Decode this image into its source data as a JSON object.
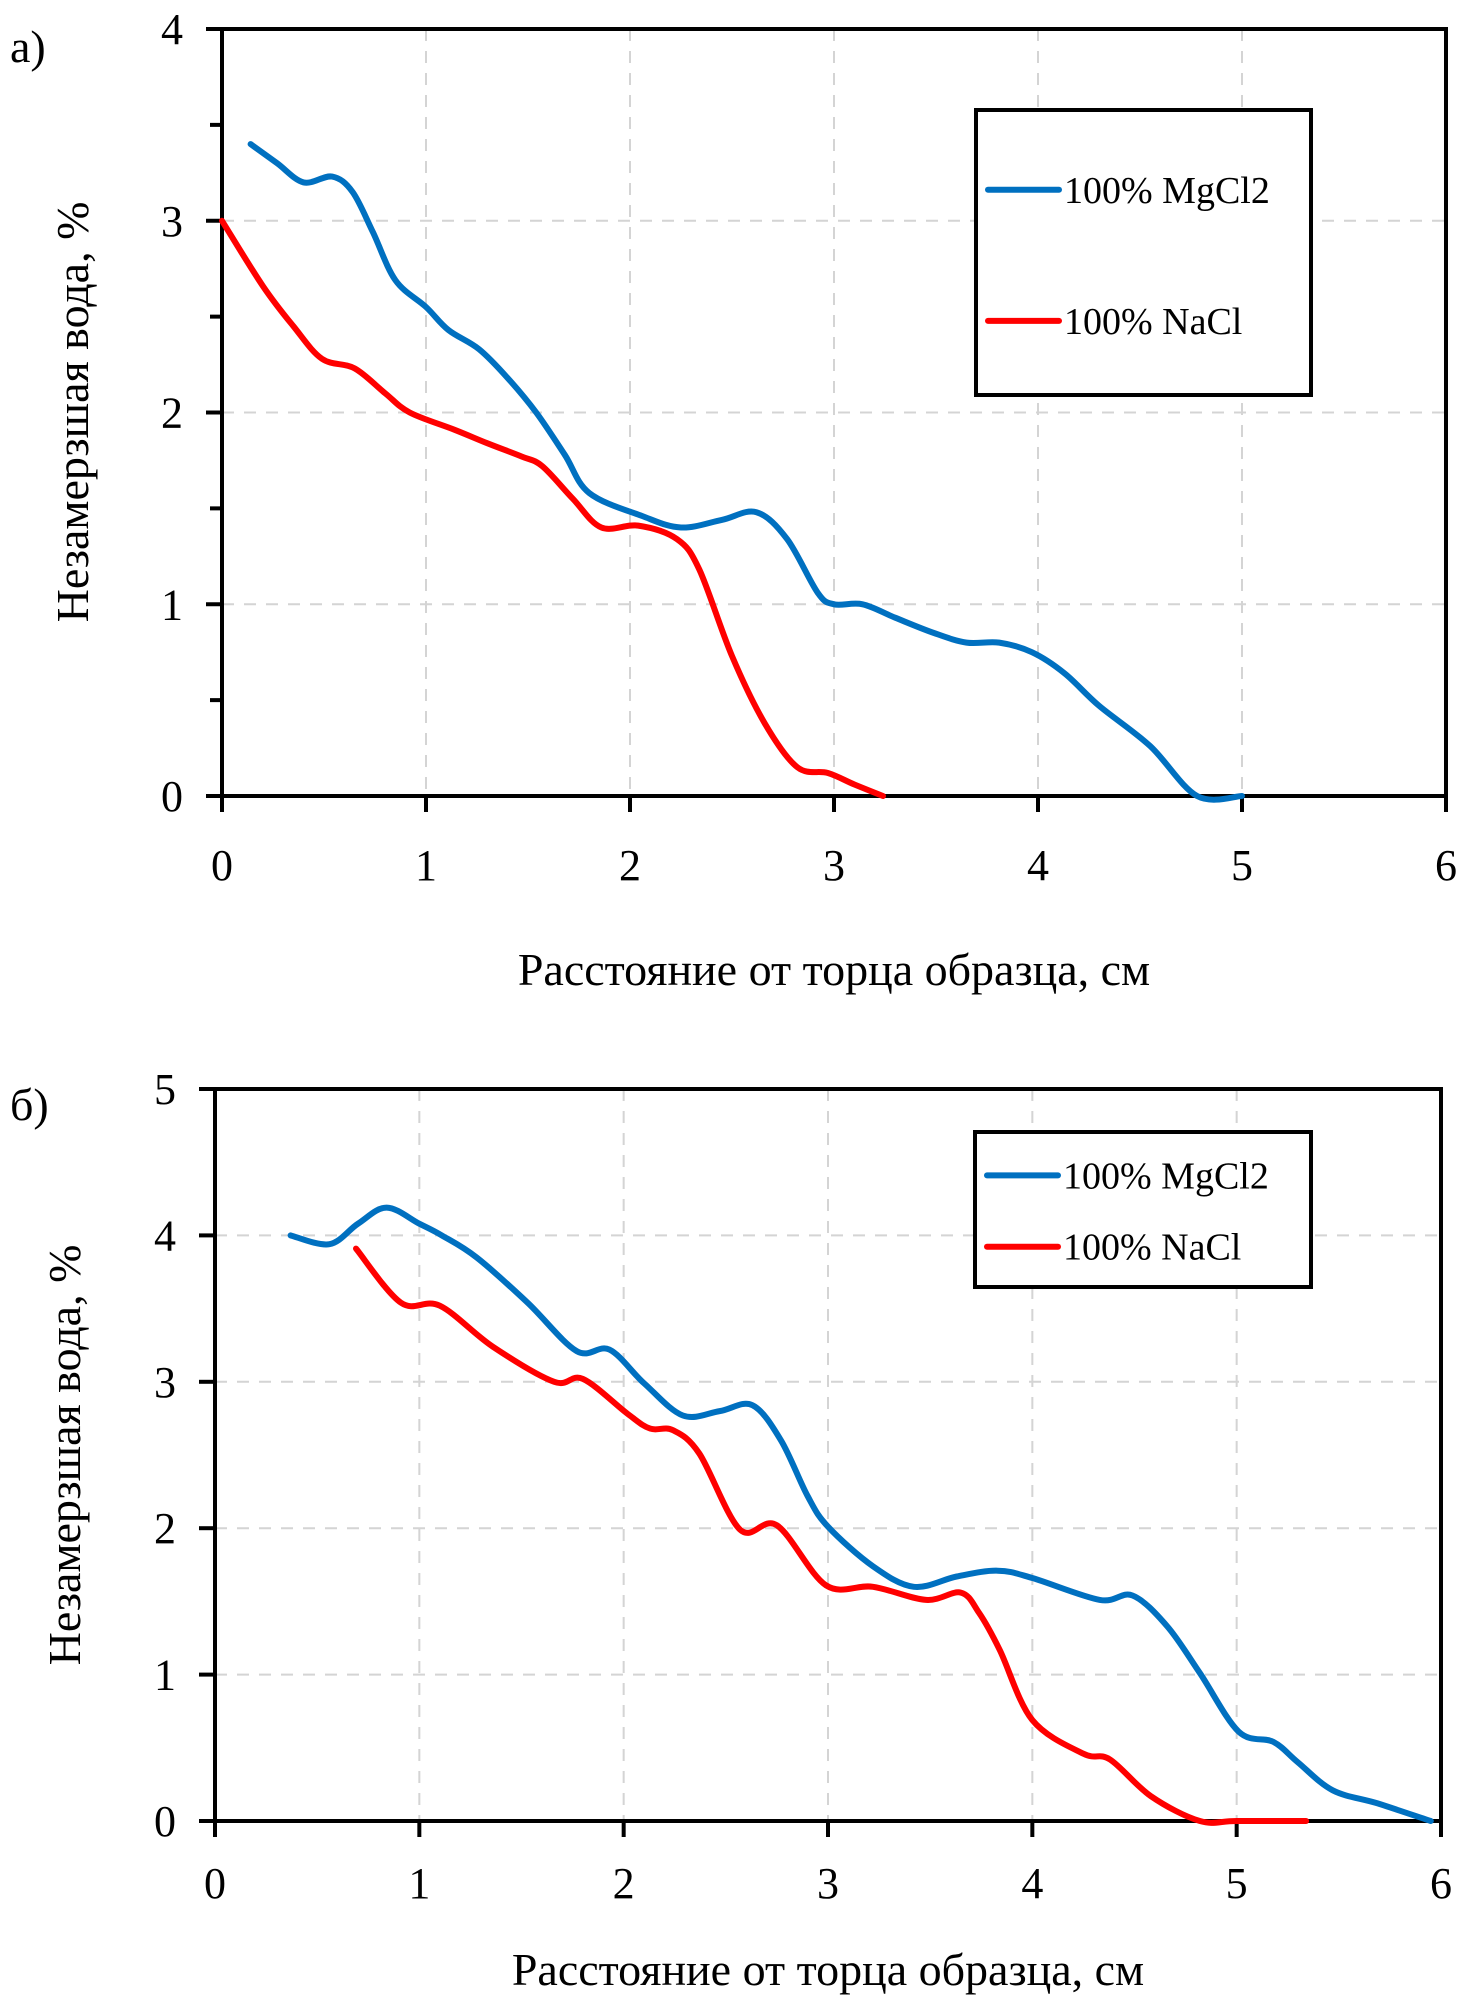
{
  "colors": {
    "mgcl2": "#0070c0",
    "nacl": "#ff0000"
  },
  "chart_data": [
    {
      "type": "line",
      "panel_label": "а)",
      "title": "",
      "xlabel": "Расстояние от торца образца, см",
      "ylabel": "Незамерзшая вода, %",
      "xlim": [
        0,
        6
      ],
      "ylim": [
        0,
        4
      ],
      "x_ticks": [
        0,
        1,
        2,
        3,
        4,
        5,
        6
      ],
      "y_ticks": [
        0,
        1,
        2,
        3,
        4
      ],
      "y_labeled_ticks": [
        0,
        1,
        2,
        3,
        4
      ],
      "y_minor_ticks": [
        0.5,
        1.5,
        2.5,
        3.5
      ],
      "x_tick_labels": [
        "0",
        "1",
        "2",
        "3",
        "4",
        "5",
        "6"
      ],
      "y_tick_labels": [
        "0",
        "1",
        "2",
        "3",
        "4"
      ],
      "grid": true,
      "legend_position": "top-right",
      "series": [
        {
          "name": "100% MgCl2",
          "color": "#0070c0",
          "x": [
            0.14,
            0.27,
            0.4,
            0.54,
            0.64,
            0.74,
            0.85,
            1.0,
            1.11,
            1.26,
            1.4,
            1.54,
            1.68,
            1.8,
            2.06,
            2.25,
            2.45,
            2.62,
            2.77,
            2.92,
            3.0,
            3.14,
            3.3,
            3.49,
            3.65,
            3.81,
            3.97,
            4.13,
            4.3,
            4.55,
            4.78,
            5.0
          ],
          "y": [
            3.4,
            3.3,
            3.2,
            3.23,
            3.15,
            2.94,
            2.69,
            2.55,
            2.43,
            2.33,
            2.18,
            2.0,
            1.78,
            1.58,
            1.46,
            1.4,
            1.44,
            1.48,
            1.34,
            1.06,
            1.0,
            1.0,
            0.93,
            0.85,
            0.8,
            0.8,
            0.75,
            0.64,
            0.47,
            0.26,
            0.0,
            0.0
          ]
        },
        {
          "name": "100% NaCl",
          "color": "#ff0000",
          "x": [
            0.0,
            0.2,
            0.35,
            0.49,
            0.65,
            0.8,
            0.92,
            1.14,
            1.3,
            1.47,
            1.57,
            1.72,
            1.86,
            2.04,
            2.23,
            2.34,
            2.5,
            2.66,
            2.82,
            2.97,
            3.1,
            3.24
          ],
          "y": [
            3.0,
            2.66,
            2.45,
            2.28,
            2.23,
            2.1,
            2.0,
            1.91,
            1.84,
            1.77,
            1.72,
            1.55,
            1.4,
            1.41,
            1.34,
            1.18,
            0.73,
            0.38,
            0.15,
            0.12,
            0.06,
            0.0
          ]
        }
      ]
    },
    {
      "type": "line",
      "panel_label": "б)",
      "title": "",
      "xlabel": "Расстояние от торца образца, см",
      "ylabel": "Незамерзшая вода, %",
      "xlim": [
        0,
        6
      ],
      "ylim": [
        0,
        5
      ],
      "x_ticks": [
        0,
        1,
        2,
        3,
        4,
        5,
        6
      ],
      "y_ticks": [
        0,
        1,
        2,
        3,
        4,
        5
      ],
      "x_tick_labels": [
        "0",
        "1",
        "2",
        "3",
        "4",
        "5",
        "6"
      ],
      "y_tick_labels": [
        "0",
        "1",
        "2",
        "3",
        "4",
        "5"
      ],
      "grid": true,
      "legend_position": "top-right",
      "series": [
        {
          "name": "100% MgCl2",
          "color": "#0070c0",
          "x": [
            0.37,
            0.56,
            0.7,
            0.84,
            1.0,
            1.11,
            1.28,
            1.53,
            1.77,
            1.93,
            2.1,
            2.29,
            2.47,
            2.63,
            2.77,
            2.9,
            3.0,
            3.22,
            3.42,
            3.63,
            3.83,
            4.0,
            4.33,
            4.49,
            4.66,
            4.82,
            5.01,
            5.18,
            5.3,
            5.47,
            5.69,
            5.95
          ],
          "y": [
            4.0,
            3.94,
            4.08,
            4.19,
            4.08,
            4.0,
            3.85,
            3.54,
            3.21,
            3.22,
            2.99,
            2.77,
            2.8,
            2.84,
            2.6,
            2.22,
            2.01,
            1.74,
            1.6,
            1.67,
            1.71,
            1.66,
            1.51,
            1.54,
            1.33,
            1.01,
            0.61,
            0.54,
            0.4,
            0.21,
            0.12,
            0.0
          ]
        },
        {
          "name": "100% NaCl",
          "color": "#ff0000",
          "x": [
            0.69,
            0.91,
            1.1,
            1.36,
            1.66,
            1.8,
            2.02,
            2.13,
            2.24,
            2.37,
            2.57,
            2.75,
            2.99,
            3.22,
            3.48,
            3.65,
            3.74,
            3.84,
            4.0,
            4.25,
            4.38,
            4.58,
            4.82,
            5.0,
            5.34
          ],
          "y": [
            3.91,
            3.54,
            3.52,
            3.24,
            3.0,
            3.02,
            2.78,
            2.68,
            2.67,
            2.51,
            1.99,
            2.02,
            1.61,
            1.6,
            1.51,
            1.56,
            1.42,
            1.17,
            0.69,
            0.46,
            0.42,
            0.17,
            0.0,
            0.0,
            0.0
          ]
        }
      ]
    }
  ]
}
